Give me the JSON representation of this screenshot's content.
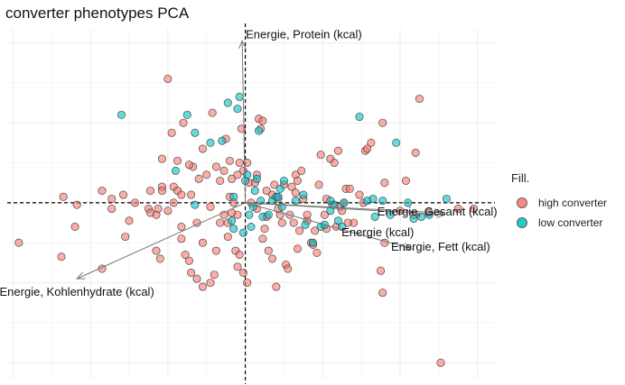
{
  "chart_data": {
    "type": "scatter",
    "title": "converter phenotypes PCA",
    "xlabel": "",
    "ylabel": "",
    "xlim": [
      -6.15,
      6.45
    ],
    "ylim": [
      -4.4,
      4.35
    ],
    "grid": true,
    "legend": {
      "title": "Fill.",
      "placement": "right",
      "entries": [
        "high converter",
        "low converter"
      ]
    },
    "colors": {
      "high converter": "#F8766D",
      "low converter": "#00BFC4"
    },
    "series": [
      {
        "name": "high converter",
        "points": [
          [
            -2.0,
            3.1
          ],
          [
            -5.85,
            -1.0
          ],
          [
            -4.4,
            -0.6
          ],
          [
            -4.75,
            -1.35
          ],
          [
            -4.7,
            0.15
          ],
          [
            -3.7,
            -1.65
          ],
          [
            -3.45,
            0.1
          ],
          [
            -3.7,
            0.3
          ],
          [
            -3.15,
            0.2
          ],
          [
            -2.85,
            0.0
          ],
          [
            -2.15,
            1.1
          ],
          [
            -2.15,
            0.4
          ],
          [
            -2.0,
            -0.2
          ],
          [
            -2.3,
            -0.3
          ],
          [
            -1.85,
            0.4
          ],
          [
            -1.85,
            0.0
          ],
          [
            -2.15,
            0.3
          ],
          [
            -1.75,
            0.3
          ],
          [
            -1.65,
            0.2
          ],
          [
            -1.4,
            0.2
          ],
          [
            -1.25,
            -0.5
          ],
          [
            -1.1,
            -1.0
          ],
          [
            -0.9,
            -0.1
          ],
          [
            -1.0,
            0.7
          ],
          [
            -1.2,
            0.6
          ],
          [
            -1.35,
            0.9
          ],
          [
            -1.45,
            0.95
          ],
          [
            -1.65,
            -0.6
          ],
          [
            -1.65,
            -0.9
          ],
          [
            -1.55,
            -1.3
          ],
          [
            -1.45,
            -1.45
          ],
          [
            -1.4,
            -1.75
          ],
          [
            -1.25,
            -1.9
          ],
          [
            -1.1,
            -2.1
          ],
          [
            -0.9,
            -2.0
          ],
          [
            -0.8,
            -1.8
          ],
          [
            -0.65,
            -0.5
          ],
          [
            -0.75,
            0.9
          ],
          [
            -0.55,
            0.8
          ],
          [
            -0.4,
            1.05
          ],
          [
            -0.3,
            0.0
          ],
          [
            -0.2,
            -0.3
          ],
          [
            -0.45,
            -0.85
          ],
          [
            -0.25,
            -1.2
          ],
          [
            -0.15,
            -1.3
          ],
          [
            -0.2,
            -1.6
          ],
          [
            -0.05,
            -1.75
          ],
          [
            0.05,
            -2.0
          ],
          [
            -0.85,
            2.25
          ],
          [
            -1.1,
            1.35
          ],
          [
            -1.6,
            2.0
          ],
          [
            -1.75,
            1.05
          ],
          [
            -1.9,
            1.75
          ],
          [
            -2.25,
            -0.15
          ],
          [
            -0.5,
            1.6
          ],
          [
            -0.15,
            1.0
          ],
          [
            -0.1,
            1.85
          ],
          [
            -0.05,
            0.8
          ],
          [
            0.05,
            1.0
          ],
          [
            0.1,
            0.5
          ],
          [
            0.15,
            0.0
          ],
          [
            0.25,
            0.5
          ],
          [
            0.3,
            -0.15
          ],
          [
            0.35,
            2.1
          ],
          [
            0.4,
            1.85
          ],
          [
            0.45,
            -0.9
          ],
          [
            0.5,
            -0.65
          ],
          [
            0.55,
            0.3
          ],
          [
            0.6,
            -1.2
          ],
          [
            0.7,
            -1.4
          ],
          [
            0.75,
            0.45
          ],
          [
            0.85,
            0.1
          ],
          [
            0.9,
            -0.3
          ],
          [
            0.95,
            -0.5
          ],
          [
            1.05,
            -1.55
          ],
          [
            1.1,
            -1.65
          ],
          [
            1.2,
            0.4
          ],
          [
            1.25,
            -0.5
          ],
          [
            1.3,
            0.7
          ],
          [
            1.35,
            0.55
          ],
          [
            1.4,
            -0.7
          ],
          [
            1.45,
            0.8
          ],
          [
            1.5,
            0.1
          ],
          [
            1.6,
            -0.45
          ],
          [
            1.7,
            -1.0
          ],
          [
            1.75,
            -1.05
          ],
          [
            1.8,
            -0.7
          ],
          [
            1.85,
            -1.25
          ],
          [
            1.9,
            0.45
          ],
          [
            1.95,
            1.2
          ],
          [
            2.05,
            -0.3
          ],
          [
            2.1,
            -0.65
          ],
          [
            2.2,
            1.1
          ],
          [
            2.3,
            1.0
          ],
          [
            2.35,
            -0.6
          ],
          [
            2.4,
            1.3
          ],
          [
            2.45,
            -0.1
          ],
          [
            2.55,
            0.0
          ],
          [
            2.6,
            0.35
          ],
          [
            2.7,
            0.35
          ],
          [
            2.8,
            -0.5
          ],
          [
            2.95,
            0.2
          ],
          [
            3.05,
            0.0
          ],
          [
            3.1,
            1.3
          ],
          [
            3.15,
            1.35
          ],
          [
            2.1,
            0.1
          ],
          [
            2.25,
            -0.05
          ],
          [
            2.5,
            -0.2
          ],
          [
            2.65,
            -0.5
          ],
          [
            3.25,
            1.5
          ],
          [
            3.5,
            -1.7
          ],
          [
            3.55,
            2.0
          ],
          [
            3.55,
            -2.25
          ],
          [
            3.6,
            -1.0
          ],
          [
            3.6,
            0.5
          ],
          [
            4.0,
            -0.2
          ],
          [
            4.15,
            0.55
          ],
          [
            4.35,
            -0.3
          ],
          [
            4.4,
            1.25
          ],
          [
            4.5,
            2.6
          ],
          [
            4.75,
            -0.25
          ],
          [
            5.05,
            -4.0
          ],
          [
            5.5,
            -0.15
          ],
          [
            5.9,
            -0.15
          ],
          [
            -2.2,
            -1.4
          ],
          [
            -2.5,
            -0.15
          ],
          [
            -2.45,
            -0.25
          ],
          [
            -2.3,
            -1.2
          ],
          [
            -2.45,
            0.3
          ],
          [
            -3.0,
            -0.45
          ],
          [
            -3.1,
            -0.85
          ],
          [
            -3.45,
            -0.15
          ],
          [
            -4.35,
            -0.05
          ],
          [
            -0.75,
            -1.2
          ],
          [
            -0.45,
            -0.5
          ],
          [
            -0.35,
            0.6
          ],
          [
            -0.2,
            0.7
          ],
          [
            -0.55,
            -0.3
          ],
          [
            -0.65,
            0.55
          ],
          [
            0.3,
            0.7
          ],
          [
            0.45,
            2.05
          ],
          [
            0.7,
            0.2
          ],
          [
            0.85,
            -0.15
          ],
          [
            1.0,
            0.45
          ],
          [
            1.15,
            -0.3
          ],
          [
            1.3,
            0.25
          ],
          [
            1.6,
            -0.3
          ],
          [
            1.35,
            -1.15
          ],
          [
            0.55,
            -0.35
          ],
          [
            0.8,
            -2.1
          ],
          [
            -0.35,
            -0.25
          ],
          [
            -0.4,
            0.15
          ]
        ]
      },
      {
        "name": "low converter",
        "points": [
          [
            -3.2,
            2.2
          ],
          [
            -1.8,
            0.8
          ],
          [
            -1.5,
            2.2
          ],
          [
            -1.3,
            1.75
          ],
          [
            -1.3,
            -0.05
          ],
          [
            -0.9,
            1.5
          ],
          [
            -0.45,
            2.5
          ],
          [
            -0.6,
            1.55
          ],
          [
            -0.2,
            2.35
          ],
          [
            -0.15,
            2.65
          ],
          [
            -0.3,
            0.15
          ],
          [
            -0.35,
            -0.45
          ],
          [
            -0.3,
            -0.65
          ],
          [
            -0.05,
            -0.75
          ],
          [
            0.0,
            0.55
          ],
          [
            0.05,
            0.7
          ],
          [
            0.1,
            -0.3
          ],
          [
            0.15,
            -0.6
          ],
          [
            0.25,
            0.3
          ],
          [
            0.3,
            0.6
          ],
          [
            0.4,
            0.05
          ],
          [
            0.45,
            -0.35
          ],
          [
            0.6,
            -0.3
          ],
          [
            0.7,
            0.05
          ],
          [
            0.8,
            0.15
          ],
          [
            0.9,
            0.35
          ],
          [
            0.95,
            -0.1
          ],
          [
            1.0,
            0.55
          ],
          [
            0.35,
            1.8
          ],
          [
            1.3,
            0.05
          ],
          [
            1.5,
            0.2
          ],
          [
            1.55,
            -0.55
          ],
          [
            1.75,
            -1.0
          ],
          [
            1.95,
            -0.6
          ],
          [
            2.05,
            -0.55
          ],
          [
            2.2,
            -0.2
          ],
          [
            2.3,
            -0.05
          ],
          [
            2.4,
            -0.45
          ],
          [
            2.5,
            -0.6
          ],
          [
            2.55,
            0.0
          ],
          [
            2.95,
            2.15
          ],
          [
            3.15,
            0.05
          ],
          [
            3.3,
            0.1
          ],
          [
            3.35,
            -0.35
          ],
          [
            3.55,
            0.05
          ],
          [
            3.9,
            1.5
          ],
          [
            3.75,
            -0.3
          ],
          [
            4.2,
            0.0
          ],
          [
            4.35,
            -0.4
          ],
          [
            4.55,
            -0.35
          ],
          [
            4.75,
            -0.3
          ],
          [
            5.2,
            0.1
          ],
          [
            2.2,
            0.05
          ],
          [
            0.85,
            0.15
          ],
          [
            0.2,
            -0.1
          ]
        ]
      }
    ],
    "loadings": [
      {
        "label": "Energie, Protein (kcal)",
        "x": -0.08,
        "y": 4.05
      },
      {
        "label": "Energie, Gesamt (kcal)",
        "x": 5.1,
        "y": -0.25
      },
      {
        "label": "Energie (kcal)",
        "x": 5.15,
        "y": -0.3
      },
      {
        "label": "Energie, Fett (kcal)",
        "x": 4.3,
        "y": -1.15
      },
      {
        "label": "Energie, Kohlenhydrate (kcal)",
        "x": -4.35,
        "y": -1.9
      }
    ]
  }
}
